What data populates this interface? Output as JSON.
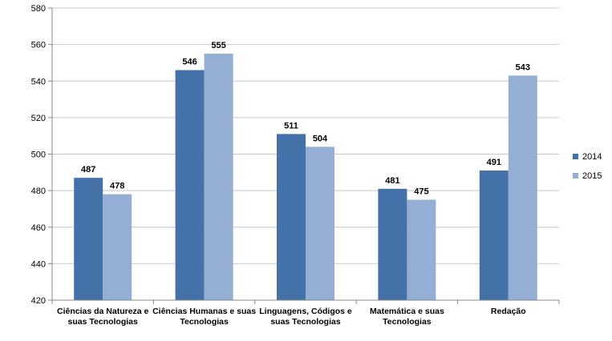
{
  "chart_data": {
    "type": "bar",
    "title": "",
    "xlabel": "",
    "ylabel": "",
    "categories": [
      [
        "Ciências da Natureza e",
        "suas Tecnologias"
      ],
      [
        "Ciências Humanas e suas",
        "Tecnologias"
      ],
      [
        "Linguagens, Códigos e",
        "suas Tecnologias"
      ],
      [
        "Matemática e suas",
        "Tecnologias"
      ],
      [
        "Redação"
      ]
    ],
    "series": [
      {
        "name": "2014",
        "color": "#4472a8",
        "values": [
          487,
          546,
          511,
          481,
          491
        ]
      },
      {
        "name": "2015",
        "color": "#95aed6",
        "values": [
          478,
          555,
          504,
          475,
          543
        ]
      }
    ],
    "ylim": [
      420,
      580
    ],
    "yticks": [
      420,
      440,
      460,
      480,
      500,
      520,
      540,
      560,
      580
    ],
    "grid": true,
    "legend_position": "right"
  }
}
